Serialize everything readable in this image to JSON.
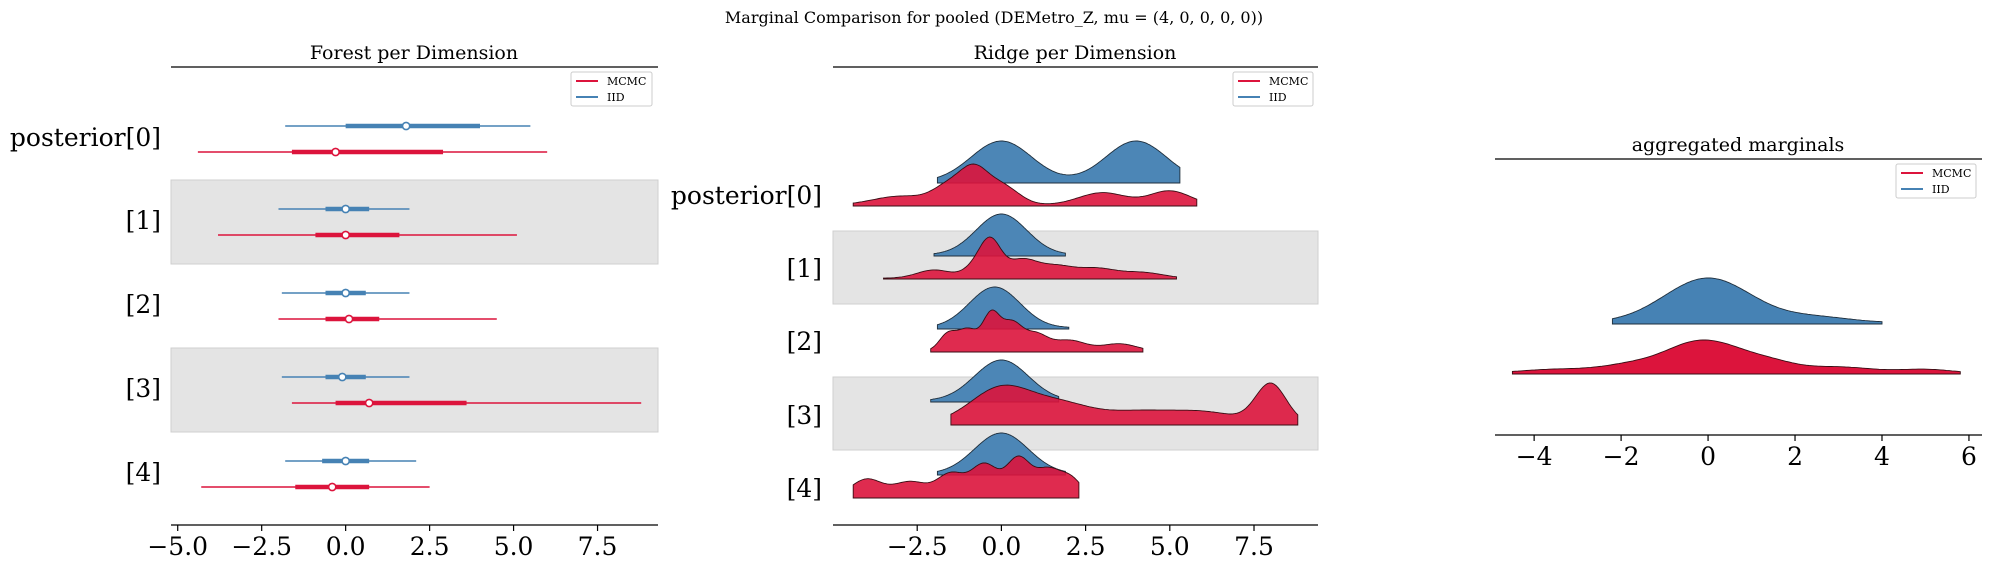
{
  "suptitle": "Marginal Comparison for pooled (DEMetro_Z, mu = (4, 0, 0, 0, 0))",
  "colors": {
    "mcmc": "#dc143c",
    "iid": "#4682b4"
  },
  "chart_data": [
    {
      "type": "forest",
      "title": "Forest per Dimension",
      "legend": [
        "MCMC",
        "IID"
      ],
      "legend_position": "top-right",
      "xlim": [
        -5.2,
        9.3
      ],
      "xticks": [
        -5.0,
        -2.5,
        0.0,
        2.5,
        5.0,
        7.5
      ],
      "xtick_labels": [
        "−5.0",
        "−2.5",
        "0.0",
        "2.5",
        "5.0",
        "7.5"
      ],
      "ylabels": [
        "posterior[0]",
        "[1]",
        "[2]",
        "[3]",
        "[4]"
      ],
      "series": [
        {
          "name": "IID",
          "intervals": [
            {
              "min": -1.8,
              "q1": 0.0,
              "median": 1.8,
              "q3": 4.0,
              "max": 5.5
            },
            {
              "min": -2.0,
              "q1": -0.6,
              "median": 0.0,
              "q3": 0.7,
              "max": 1.9
            },
            {
              "min": -1.9,
              "q1": -0.6,
              "median": 0.0,
              "q3": 0.6,
              "max": 1.9
            },
            {
              "min": -1.9,
              "q1": -0.6,
              "median": -0.1,
              "q3": 0.6,
              "max": 1.9
            },
            {
              "min": -1.8,
              "q1": -0.7,
              "median": 0.0,
              "q3": 0.7,
              "max": 2.1
            }
          ]
        },
        {
          "name": "MCMC",
          "intervals": [
            {
              "min": -4.4,
              "q1": -1.6,
              "median": -0.3,
              "q3": 2.9,
              "max": 6.0
            },
            {
              "min": -3.8,
              "q1": -0.9,
              "median": 0.0,
              "q3": 1.6,
              "max": 5.1
            },
            {
              "min": -2.0,
              "q1": -0.6,
              "median": 0.1,
              "q3": 1.0,
              "max": 4.5
            },
            {
              "min": -1.6,
              "q1": -0.3,
              "median": 0.7,
              "q3": 3.6,
              "max": 8.8
            },
            {
              "min": -4.3,
              "q1": -1.5,
              "median": -0.4,
              "q3": 0.7,
              "max": 2.5
            }
          ]
        }
      ]
    },
    {
      "type": "ridge",
      "title": "Ridge per Dimension",
      "legend": [
        "MCMC",
        "IID"
      ],
      "legend_position": "top-right",
      "xlim": [
        -5.0,
        9.4
      ],
      "xticks": [
        -2.5,
        0.0,
        2.5,
        5.0,
        7.5
      ],
      "xtick_labels": [
        "−2.5",
        "0.0",
        "2.5",
        "5.0",
        "7.5"
      ],
      "ylabels": [
        "posterior[0]",
        "[1]",
        "[2]",
        "[3]",
        "[4]"
      ],
      "series": [
        {
          "name": "IID",
          "ranges": [
            [
              -1.9,
              5.3
            ],
            [
              -2.0,
              1.9
            ],
            [
              -1.9,
              2.0
            ],
            [
              -2.1,
              1.7
            ],
            [
              -1.9,
              1.9
            ]
          ],
          "peaks": [
            [
              [
                0.0,
                1.0,
                0.9
              ],
              [
                4.0,
                1.0,
                0.9
              ]
            ],
            [
              [
                0.0,
                1.0,
                0.75
              ]
            ],
            [
              [
                -0.2,
                1.0,
                0.75
              ]
            ],
            [
              [
                0.0,
                1.0,
                0.8
              ]
            ],
            [
              [
                0.0,
                1.0,
                0.8
              ]
            ]
          ]
        },
        {
          "name": "MCMC",
          "ranges": [
            [
              -4.4,
              5.8
            ],
            [
              -3.5,
              5.2
            ],
            [
              -2.1,
              4.2
            ],
            [
              -1.5,
              8.8
            ],
            [
              -4.4,
              2.3
            ]
          ],
          "peaks": [
            [
              [
                -3.0,
                0.25,
                0.8
              ],
              [
                -1.5,
                0.55,
                0.5
              ],
              [
                -0.8,
                0.8,
                0.4
              ],
              [
                0.0,
                0.55,
                0.5
              ],
              [
                3.0,
                0.35,
                0.7
              ],
              [
                5.0,
                0.4,
                0.6
              ]
            ],
            [
              [
                -2.0,
                0.3,
                0.5
              ],
              [
                -0.6,
                0.6,
                0.4
              ],
              [
                -0.3,
                0.95,
                0.3
              ],
              [
                0.6,
                0.65,
                0.45
              ],
              [
                1.6,
                0.4,
                0.5
              ],
              [
                2.8,
                0.35,
                0.6
              ],
              [
                4.2,
                0.2,
                0.6
              ]
            ],
            [
              [
                -1.6,
                0.45,
                0.25
              ],
              [
                -1.0,
                0.6,
                0.3
              ],
              [
                -0.3,
                1.0,
                0.25
              ],
              [
                0.3,
                0.75,
                0.3
              ],
              [
                1.0,
                0.45,
                0.35
              ],
              [
                2.0,
                0.3,
                0.5
              ],
              [
                3.5,
                0.2,
                0.5
              ]
            ],
            [
              [
                0.0,
                0.5,
                0.9
              ],
              [
                1.8,
                0.25,
                0.9
              ],
              [
                4.0,
                0.15,
                1.0
              ],
              [
                6.0,
                0.15,
                1.0
              ],
              [
                8.0,
                0.55,
                0.45
              ]
            ],
            [
              [
                -4.0,
                0.35,
                0.45
              ],
              [
                -2.7,
                0.3,
                0.5
              ],
              [
                -1.5,
                0.45,
                0.4
              ],
              [
                -0.5,
                0.65,
                0.4
              ],
              [
                0.5,
                0.75,
                0.35
              ],
              [
                1.4,
                0.55,
                0.4
              ],
              [
                2.1,
                0.3,
                0.3
              ]
            ]
          ]
        }
      ]
    },
    {
      "type": "ridge",
      "title": "aggregated marginals",
      "legend": [
        "MCMC",
        "IID"
      ],
      "legend_position": "top-right",
      "xlim": [
        -4.9,
        6.3
      ],
      "xticks": [
        -4,
        -2,
        0,
        2,
        4,
        6
      ],
      "xtick_labels": [
        "−4",
        "−2",
        "0",
        "2",
        "4",
        "6"
      ],
      "series": [
        {
          "name": "IID",
          "range": [
            -2.2,
            4.0
          ],
          "peaks": [
            [
              0.0,
              1.0,
              1.0
            ],
            [
              2.5,
              0.12,
              0.8
            ]
          ]
        },
        {
          "name": "MCMC",
          "range": [
            -4.5,
            5.8
          ],
          "peaks": [
            [
              -3.5,
              0.12,
              0.8
            ],
            [
              -1.5,
              0.35,
              0.8
            ],
            [
              -0.4,
              0.65,
              0.6
            ],
            [
              0.4,
              0.6,
              0.6
            ],
            [
              1.4,
              0.35,
              0.6
            ],
            [
              3.0,
              0.2,
              0.8
            ],
            [
              5.0,
              0.12,
              0.6
            ]
          ]
        }
      ]
    }
  ]
}
